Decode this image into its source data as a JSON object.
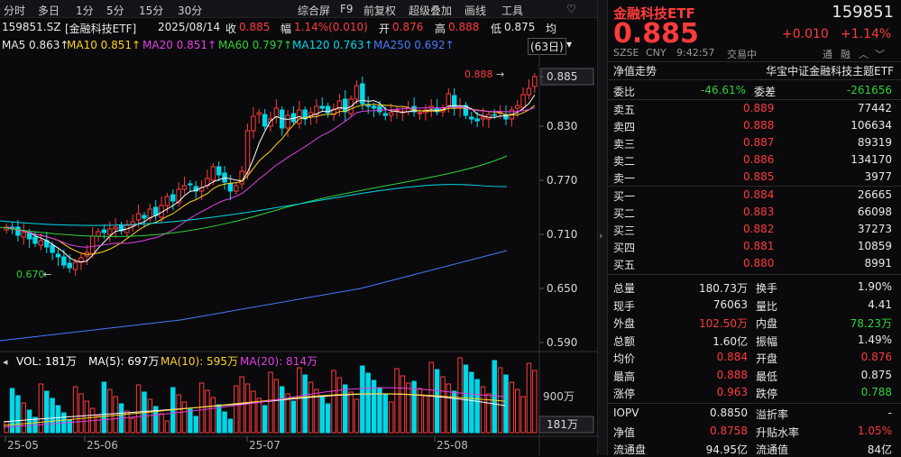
{
  "toolbar": {
    "items": [
      "分时",
      "多日",
      "1分",
      "5分",
      "15分",
      "30分",
      "综合屏",
      "F9",
      "前复权",
      "超级叠加",
      "画线",
      "工具"
    ],
    "right_icon": "heart-icon"
  },
  "info": {
    "code": "159851.SZ",
    "name": "[金融科技ETF]",
    "date": "2025/08/14",
    "close_label": "收",
    "close": "0.885",
    "change_label": "幅",
    "change": "1.14%(0.010)",
    "open_label": "开",
    "open": "0.876",
    "high_label": "高",
    "high": "0.888",
    "low_label": "低",
    "low": "0.875",
    "avg_label": "均"
  },
  "ma": {
    "ma5": "MA5 0.863↑",
    "ma10": "MA10 0.851↑",
    "ma20": "MA20 0.851↑",
    "ma60": "MA60 0.797↑",
    "ma120": "MA120 0.763↑",
    "ma250": "MA250 0.692↑",
    "period": "(63日)"
  },
  "price_axis": [
    "0.885",
    "0.830",
    "0.770",
    "0.710",
    "0.650",
    "0.590"
  ],
  "annotations": {
    "high": "0.888",
    "low": "0.670"
  },
  "vol": {
    "label": "VOL: 181万",
    "ma5": "MA(5): 697万",
    "ma10": "MA(10): 595万",
    "ma20": "MA(20): 814万",
    "axis": "900万",
    "current": "181万"
  },
  "dates": [
    "25-05",
    "25-06",
    "25-07",
    "25-08"
  ],
  "panel": {
    "title": "金融科技ETF",
    "code": "159851",
    "price": "0.885",
    "change": "+0.010",
    "pct": "+1.14%",
    "meta": {
      "exchange": "SZSE",
      "currency": "CNY",
      "time": "9:42:57",
      "status": "交易中",
      "tong": "通",
      "rong": "融"
    },
    "tabs": {
      "left": "净值走势",
      "right": "华宝中证金融科技主题ETF"
    },
    "weibi": {
      "label": "委比",
      "value": "-46.61%",
      "label2": "委差",
      "value2": "-261656"
    },
    "sells": [
      {
        "label": "卖五",
        "price": "0.889",
        "vol": "77442"
      },
      {
        "label": "卖四",
        "price": "0.888",
        "vol": "106634"
      },
      {
        "label": "卖三",
        "price": "0.887",
        "vol": "89319"
      },
      {
        "label": "卖二",
        "price": "0.886",
        "vol": "134170"
      },
      {
        "label": "卖一",
        "price": "0.885",
        "vol": "3977"
      }
    ],
    "buys": [
      {
        "label": "买一",
        "price": "0.884",
        "vol": "26665"
      },
      {
        "label": "买二",
        "price": "0.883",
        "vol": "66098"
      },
      {
        "label": "买三",
        "price": "0.882",
        "vol": "37273"
      },
      {
        "label": "买四",
        "price": "0.881",
        "vol": "10859"
      },
      {
        "label": "买五",
        "price": "0.880",
        "vol": "8991"
      }
    ],
    "stats": [
      [
        {
          "l": "总量",
          "v": "180.73万",
          "c": "white"
        },
        {
          "l": "换手",
          "v": "1.90%",
          "c": "white"
        }
      ],
      [
        {
          "l": "现手",
          "v": "76063",
          "c": "white"
        },
        {
          "l": "量比",
          "v": "4.41",
          "c": "white"
        }
      ],
      [
        {
          "l": "外盘",
          "v": "102.50万",
          "c": "red"
        },
        {
          "l": "内盘",
          "v": "78.23万",
          "c": "green"
        }
      ],
      [
        {
          "l": "总额",
          "v": "1.60亿",
          "c": "white"
        },
        {
          "l": "振幅",
          "v": "1.49%",
          "c": "white"
        }
      ],
      [
        {
          "l": "均价",
          "v": "0.884",
          "c": "red"
        },
        {
          "l": "开盘",
          "v": "0.876",
          "c": "red"
        }
      ],
      [
        {
          "l": "最高",
          "v": "0.888",
          "c": "red"
        },
        {
          "l": "最低",
          "v": "0.875",
          "c": "white"
        }
      ],
      [
        {
          "l": "涨停",
          "v": "0.963",
          "c": "red"
        },
        {
          "l": "跌停",
          "v": "0.788",
          "c": "green"
        }
      ]
    ],
    "stats2": [
      [
        {
          "l": "IOPV",
          "v": "0.8850",
          "c": "white"
        },
        {
          "l": "溢折率",
          "v": "-",
          "c": "white"
        }
      ],
      [
        {
          "l": "净值",
          "v": "0.8758",
          "c": "red"
        },
        {
          "l": "升贴水率",
          "v": "1.05%",
          "c": "red"
        }
      ],
      [
        {
          "l": "流通盘",
          "v": "94.95亿",
          "c": "white"
        },
        {
          "l": "流通值",
          "v": "84亿",
          "c": "white"
        }
      ]
    ]
  }
}
